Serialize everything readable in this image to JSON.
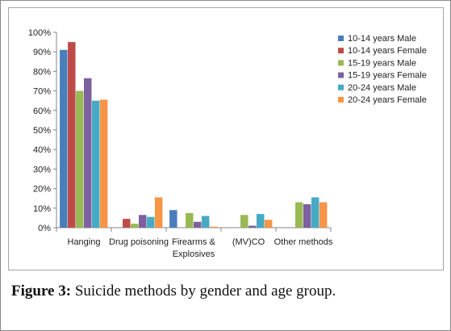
{
  "caption": {
    "label": "Figure 3:",
    "text": " Suicide methods by gender and age group."
  },
  "chart_data": {
    "type": "bar",
    "title": "",
    "xlabel": "",
    "ylabel": "",
    "ylim": [
      0,
      100
    ],
    "y_ticks": [
      "0%",
      "10%",
      "20%",
      "30%",
      "40%",
      "50%",
      "60%",
      "70%",
      "80%",
      "90%",
      "100%"
    ],
    "y_unit": "%",
    "grid": false,
    "legend_position": "right",
    "categories": [
      "Hanging",
      "Drug poisoning",
      "Firearms &\nExplosives",
      "(MV)CO",
      "Other methods"
    ],
    "series": [
      {
        "name": "10-14 years Male",
        "color": "#4a7ebb",
        "values": [
          91,
          0,
          9,
          0,
          0
        ]
      },
      {
        "name": "10-14 years Female",
        "color": "#be4b48",
        "values": [
          95,
          4.5,
          0,
          0,
          0
        ]
      },
      {
        "name": "15-19 years Male",
        "color": "#98b954",
        "values": [
          70,
          2,
          7.5,
          6.5,
          13
        ]
      },
      {
        "name": "15-19 years Female",
        "color": "#7d60a0",
        "values": [
          76.5,
          6.5,
          3,
          1,
          12
        ]
      },
      {
        "name": "20-24 years Male",
        "color": "#46aac5",
        "values": [
          65,
          5.5,
          6,
          7,
          15.5
        ]
      },
      {
        "name": "20-24 years Female",
        "color": "#f69546",
        "values": [
          65.5,
          15.5,
          0.5,
          4,
          13
        ]
      }
    ]
  }
}
